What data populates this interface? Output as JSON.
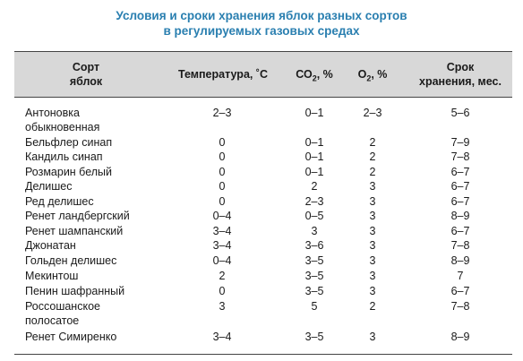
{
  "title": {
    "line1": "Условия и сроки хранения яблок разных сортов",
    "line2": "в регулируемых газовых средах"
  },
  "header": {
    "variety_line1": "Сорт",
    "variety_line2": "яблок",
    "temperature": "Температура, ˚С",
    "co2_prefix": "СО",
    "co2_sub": "2",
    "co2_suffix": ", %",
    "o2_prefix": "О",
    "o2_sub": "2",
    "o2_suffix": ", %",
    "term_line1": "Срок",
    "term_line2": "хранения, мес."
  },
  "rows": [
    {
      "variety": "Антоновка",
      "temp": "2–3",
      "co2": "0–1",
      "o2": "2–3",
      "term": "5–6"
    },
    {
      "variety": "обыкновенная",
      "temp": "",
      "co2": "",
      "o2": "",
      "term": ""
    },
    {
      "variety": "Бельфлер синап",
      "temp": "0",
      "co2": "0–1",
      "o2": "2",
      "term": "7–9"
    },
    {
      "variety": "Кандиль синап",
      "temp": "0",
      "co2": "0–1",
      "o2": "2",
      "term": "7–8"
    },
    {
      "variety": "Розмарин белый",
      "temp": "0",
      "co2": "0–1",
      "o2": "2",
      "term": "6–7"
    },
    {
      "variety": "Делишес",
      "temp": "0",
      "co2": "2",
      "o2": "3",
      "term": "6–7"
    },
    {
      "variety": "Ред делишес",
      "temp": "0",
      "co2": "2–3",
      "o2": "3",
      "term": "6–7"
    },
    {
      "variety": "Ренет ландбергский",
      "temp": "0–4",
      "co2": "0–5",
      "o2": "3",
      "term": "8–9"
    },
    {
      "variety": "Ренет шампанский",
      "temp": "3–4",
      "co2": "3",
      "o2": "3",
      "term": "6–7"
    },
    {
      "variety": "Джонатан",
      "temp": "3–4",
      "co2": "3–6",
      "o2": "3",
      "term": "7–8"
    },
    {
      "variety": "Гольден делишес",
      "temp": "0–4",
      "co2": "3–5",
      "o2": "3",
      "term": "8–9"
    },
    {
      "variety": "Мекинтош",
      "temp": "2",
      "co2": "3–5",
      "o2": "3",
      "term": "7"
    },
    {
      "variety": "Пенин шафранный",
      "temp": "0",
      "co2": "3–5",
      "o2": "3",
      "term": "6–7"
    },
    {
      "variety": "Россошанское",
      "temp": "3",
      "co2": "5",
      "o2": "2",
      "term": "7–8"
    },
    {
      "variety": "полосатое",
      "temp": "",
      "co2": "",
      "o2": "",
      "term": ""
    },
    {
      "variety": "Ренет Симиренко",
      "temp": "3–4",
      "co2": "3–5",
      "o2": "3",
      "term": "8–9"
    }
  ]
}
